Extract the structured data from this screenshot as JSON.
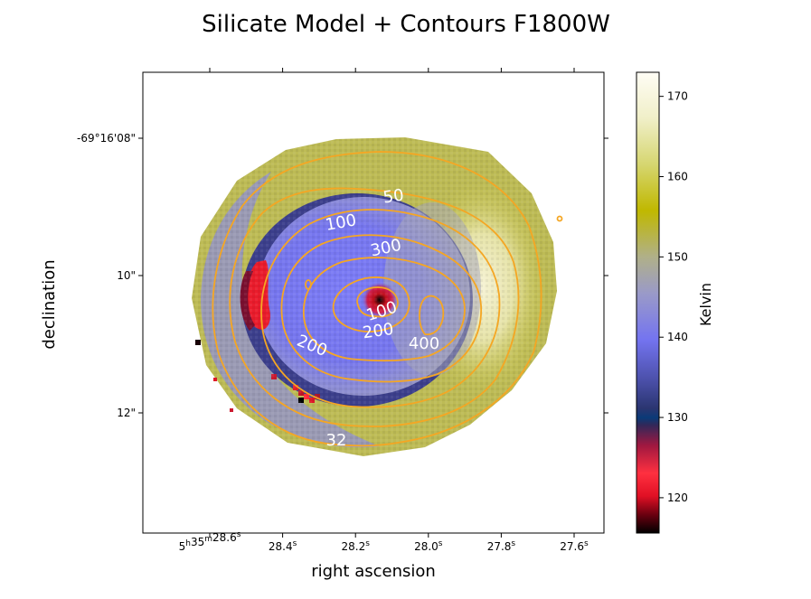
{
  "chart_data": {
    "type": "heatmap",
    "title": "Silicate Model + Contours F1800W",
    "xlabel": "right ascension",
    "ylabel": "declination",
    "x_ticks": [
      {
        "prefix": "5",
        "h": "h",
        "m_val": "35",
        "m": "m",
        "val": "28.6",
        "s": "s"
      },
      {
        "val": "28.4",
        "s": "s"
      },
      {
        "val": "28.2",
        "s": "s"
      },
      {
        "val": "28.0",
        "s": "s"
      },
      {
        "val": "27.8",
        "s": "s"
      },
      {
        "val": "27.6",
        "s": "s"
      }
    ],
    "y_ticks": [
      "-69°16'08\"",
      "10\"",
      "12\""
    ],
    "colorbar": {
      "label": "Kelvin",
      "range": [
        115.6,
        173
      ],
      "ticks": [
        170,
        160,
        150,
        140,
        130,
        120
      ],
      "colormap": "gist_stern-like: black 115, red 120, navy 130, blue 140, lavender-gray 150, olive-yellow 160, cream 170"
    },
    "temperature_map": {
      "description_values_kelvin": {
        "core_hotspot": 117,
        "inner_disk": 141,
        "west_red_arc": 120,
        "south_east_clumps": 121,
        "outer_ring": 155,
        "east_bright_region": 168
      }
    },
    "contours": {
      "color": "#f5a623",
      "labels": [
        "50",
        "100",
        "300",
        "100",
        "200",
        "400",
        "200",
        "32"
      ]
    }
  }
}
